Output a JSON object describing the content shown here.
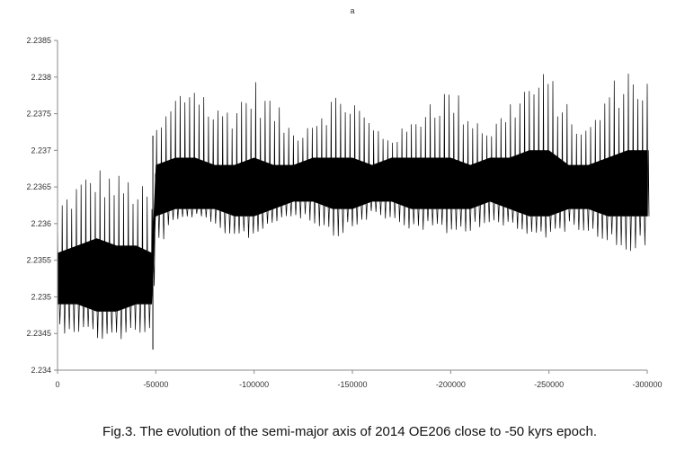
{
  "chart_data": {
    "type": "line",
    "title": "a",
    "xlabel": "",
    "ylabel": "",
    "xlim": [
      0,
      -300000
    ],
    "ylim": [
      2.234,
      2.2385
    ],
    "x_ticks": [
      "0",
      "-50000",
      "-100000",
      "-150000",
      "-200000",
      "-250000",
      "-300000"
    ],
    "x_tick_values": [
      0,
      -50000,
      -100000,
      -150000,
      -200000,
      -250000,
      -300000
    ],
    "y_ticks": [
      "2.234",
      "2.2345",
      "2.235",
      "2.2355",
      "2.236",
      "2.2365",
      "2.237",
      "2.2375",
      "2.238",
      "2.2385"
    ],
    "y_tick_values": [
      2.234,
      2.2345,
      2.235,
      2.2355,
      2.236,
      2.2365,
      2.237,
      2.2375,
      2.238,
      2.2385
    ],
    "grid": false,
    "legend": "none",
    "line_color": "#000000",
    "envelope": {
      "x": [
        0,
        -10000,
        -20000,
        -30000,
        -40000,
        -48000,
        -50000,
        -60000,
        -70000,
        -80000,
        -90000,
        -100000,
        -110000,
        -120000,
        -130000,
        -140000,
        -150000,
        -160000,
        -170000,
        -180000,
        -190000,
        -200000,
        -210000,
        -220000,
        -230000,
        -240000,
        -250000,
        -260000,
        -270000,
        -280000,
        -290000,
        -300000
      ],
      "upper": [
        2.2363,
        2.2366,
        2.2368,
        2.2367,
        2.2366,
        2.2364,
        2.2373,
        2.2378,
        2.2381,
        2.2376,
        2.2377,
        2.238,
        2.2377,
        2.2373,
        2.2375,
        2.2378,
        2.2378,
        2.2374,
        2.2372,
        2.2374,
        2.2378,
        2.2379,
        2.2376,
        2.2373,
        2.2377,
        2.238,
        2.2381,
        2.2376,
        2.2373,
        2.2379,
        2.2382,
        2.238
      ],
      "lower": [
        2.2345,
        2.2345,
        2.2344,
        2.2344,
        2.2344,
        2.2344,
        2.2356,
        2.236,
        2.2361,
        2.2359,
        2.2358,
        2.2358,
        2.236,
        2.2361,
        2.236,
        2.2358,
        2.2359,
        2.2361,
        2.236,
        2.2359,
        2.2359,
        2.2358,
        2.2359,
        2.236,
        2.2359,
        2.2358,
        2.2358,
        2.2359,
        2.2359,
        2.2357,
        2.2356,
        2.2357
      ],
      "core_upper": [
        2.2356,
        2.2357,
        2.2358,
        2.2357,
        2.2357,
        2.2356,
        2.2368,
        2.2369,
        2.2369,
        2.2368,
        2.2368,
        2.2369,
        2.2368,
        2.2368,
        2.2369,
        2.2369,
        2.2369,
        2.2368,
        2.2369,
        2.2369,
        2.2369,
        2.2369,
        2.2368,
        2.2369,
        2.2369,
        2.237,
        2.237,
        2.2368,
        2.2368,
        2.2369,
        2.237,
        2.237
      ],
      "core_lower": [
        2.2349,
        2.2349,
        2.2348,
        2.2348,
        2.2349,
        2.2349,
        2.2361,
        2.2362,
        2.2362,
        2.2362,
        2.2361,
        2.2361,
        2.2362,
        2.2363,
        2.2363,
        2.2362,
        2.2362,
        2.2363,
        2.2363,
        2.2362,
        2.2362,
        2.2362,
        2.2362,
        2.2363,
        2.2362,
        2.2361,
        2.2361,
        2.2362,
        2.2362,
        2.2361,
        2.2361,
        2.2361
      ]
    },
    "oscillation_period_x": 2400
  },
  "caption": "Fig.3. The evolution of the semi-major axis of 2014 OE206 close to -50 kyrs epoch."
}
